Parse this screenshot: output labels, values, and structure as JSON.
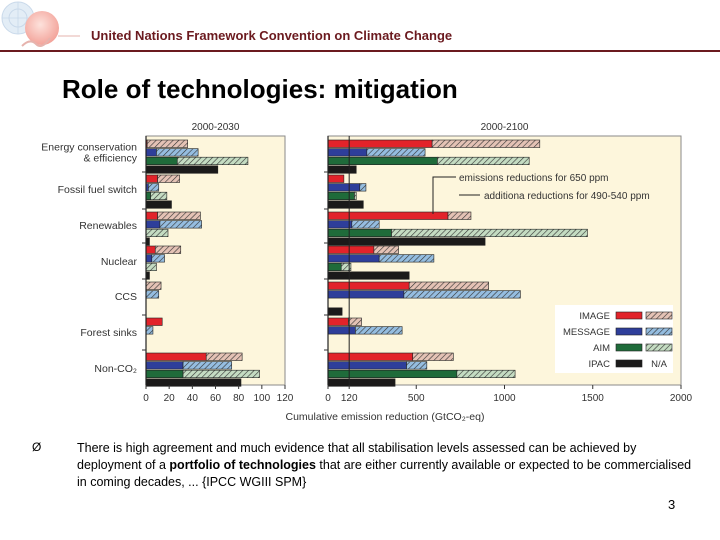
{
  "header": {
    "org_name": "United Nations Framework Convention on Climate Change",
    "logo_icon": "un-climate-logo-icon"
  },
  "slide": {
    "title": "Role of technologies: mitigation",
    "bullet_icon": "arrowhead-bullet-icon",
    "bullet_glyph": "Ø",
    "bullet_text_before": "There is high agreement and much evidence that all stabilisation levels assessed can be achieved by deployment of a ",
    "bullet_text_bold": "portfolio of technologies",
    "bullet_text_after": " that are either currently available or expected to be commercialised in coming decades, ... {IPCC WGIII SPM}",
    "page_number": "3"
  },
  "colors": {
    "panel_bg": "#fdf6dc",
    "IMAGE_solid": "#e2232a",
    "IMAGE_hatch": "#e4c2b5",
    "MESSAGE_solid": "#2e3e9a",
    "MESSAGE_hatch": "#95bde0",
    "AIM_solid": "#1f6b3a",
    "AIM_hatch": "#c4dcc2",
    "IPAC_solid": "#1b1a1a"
  },
  "chart_data": [
    {
      "type": "bar",
      "orientation": "horizontal",
      "stacked": true,
      "title": "2000-2030",
      "xlabel": "Cumulative emission reduction (GtCO₂-eq)",
      "xlim": [
        0,
        120
      ],
      "xticks": [
        "0",
        "20",
        "40",
        "60",
        "80",
        "100",
        "120"
      ],
      "categories": [
        "Energy conservation & efficiency",
        "Fossil fuel switch",
        "Renewables",
        "Nuclear",
        "CCS",
        "Forest sinks",
        "Non-CO₂"
      ],
      "category_lines": [
        [
          "Energy conservation",
          "& efficiency"
        ],
        [
          "Fossil fuel switch"
        ],
        [
          "Renewables"
        ],
        [
          "Nuclear"
        ],
        [
          "CCS"
        ],
        [
          "Forest sinks"
        ],
        [
          "Non-CO₂"
        ]
      ],
      "models": [
        "IMAGE",
        "MESSAGE",
        "AIM",
        "IPAC"
      ],
      "series": [
        {
          "name": "IMAGE",
          "part": "emissions reductions for 650 ppm",
          "values": [
            1,
            10,
            10,
            8,
            0,
            14,
            52
          ]
        },
        {
          "name": "IMAGE",
          "part": "additional reductions for 490-540 ppm",
          "values": [
            35,
            19,
            37,
            22,
            13,
            0,
            31
          ]
        },
        {
          "name": "MESSAGE",
          "part": "emissions reductions for 650 ppm",
          "values": [
            9,
            2,
            12,
            5,
            0,
            0,
            32
          ]
        },
        {
          "name": "MESSAGE",
          "part": "additional reductions for 490-540 ppm",
          "values": [
            36,
            9,
            36,
            11,
            11,
            6,
            42
          ]
        },
        {
          "name": "AIM",
          "part": "emissions reductions for 650 ppm",
          "values": [
            27,
            4,
            0,
            0,
            null,
            null,
            32
          ]
        },
        {
          "name": "AIM",
          "part": "additional reductions for 490-540 ppm",
          "values": [
            61,
            14,
            19,
            9,
            null,
            null,
            66
          ]
        },
        {
          "name": "IPAC",
          "part": "emissions reductions for 650 ppm",
          "values": [
            62,
            22,
            3,
            3,
            null,
            null,
            82
          ]
        }
      ]
    },
    {
      "type": "bar",
      "orientation": "horizontal",
      "stacked": true,
      "title": "2000-2100",
      "xlabel": "Cumulative emission reduction (GtCO₂-eq)",
      "xlim": [
        0,
        2000
      ],
      "xticks": [
        "0",
        "120",
        "500",
        "1000",
        "1500",
        "2000"
      ],
      "reference_line": 120,
      "categories": [
        "Energy conservation & efficiency",
        "Fossil fuel switch",
        "Renewables",
        "Nuclear",
        "CCS",
        "Forest sinks",
        "Non-CO₂"
      ],
      "models": [
        "IMAGE",
        "MESSAGE",
        "AIM",
        "IPAC"
      ],
      "series": [
        {
          "name": "IMAGE",
          "part": "emissions reductions for 650 ppm",
          "values": [
            590,
            90,
            680,
            260,
            460,
            115,
            480
          ]
        },
        {
          "name": "IMAGE",
          "part": "additional reductions for 490-540 ppm",
          "values": [
            610,
            0,
            130,
            140,
            450,
            75,
            230
          ]
        },
        {
          "name": "MESSAGE",
          "part": "emissions reductions for 650 ppm",
          "values": [
            220,
            180,
            135,
            290,
            430,
            155,
            445
          ]
        },
        {
          "name": "MESSAGE",
          "part": "additional reductions for 490-540 ppm",
          "values": [
            330,
            35,
            155,
            310,
            660,
            265,
            115
          ]
        },
        {
          "name": "AIM",
          "part": "emissions reductions for 650 ppm",
          "values": [
            620,
            150,
            360,
            75,
            null,
            null,
            730
          ]
        },
        {
          "name": "AIM",
          "part": "additional reductions for 490-540 ppm",
          "values": [
            520,
            10,
            1110,
            55,
            null,
            null,
            330
          ]
        },
        {
          "name": "IPAC",
          "part": "emissions reductions for 650 ppm",
          "values": [
            160,
            200,
            890,
            460,
            80,
            null,
            380
          ]
        }
      ],
      "annotations": [
        "emissions reductions for 650 ppm",
        "additiona  reductions for 490-540 ppm"
      ],
      "legend": {
        "placement": "bottom-right",
        "entries": [
          {
            "label": "IMAGE",
            "solid": "#e2232a",
            "hatch": "#e4c2b5"
          },
          {
            "label": "MESSAGE",
            "solid": "#2e3e9a",
            "hatch": "#95bde0"
          },
          {
            "label": "AIM",
            "solid": "#1f6b3a",
            "hatch": "#c4dcc2"
          },
          {
            "label": "IPAC",
            "solid": "#1b1a1a",
            "hatch_label": "N/A"
          }
        ]
      }
    }
  ]
}
